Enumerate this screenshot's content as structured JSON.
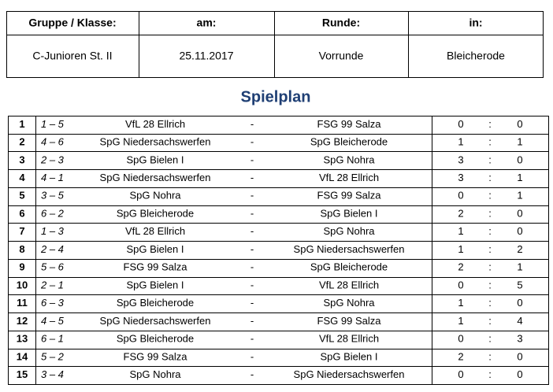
{
  "header": {
    "columns": [
      "Gruppe / Klasse:",
      "am:",
      "Runde:",
      "in:"
    ],
    "values": [
      "C-Junioren St. II",
      "25.11.2017",
      "Vorrunde",
      "Bleicherode"
    ]
  },
  "schedule": {
    "title": "Spielplan",
    "match_separator": "-",
    "score_separator": ":",
    "rows": [
      {
        "nr": 1,
        "pairing": "1 – 5",
        "home": "VfL 28 Ellrich",
        "away": "FSG 99 Salza",
        "home_goals": 0,
        "away_goals": 0
      },
      {
        "nr": 2,
        "pairing": "4 – 6",
        "home": "SpG Niedersachswerfen",
        "away": "SpG Bleicherode",
        "home_goals": 1,
        "away_goals": 1
      },
      {
        "nr": 3,
        "pairing": "2 – 3",
        "home": "SpG Bielen I",
        "away": "SpG Nohra",
        "home_goals": 3,
        "away_goals": 0
      },
      {
        "nr": 4,
        "pairing": "4 – 1",
        "home": "SpG Niedersachswerfen",
        "away": "VfL 28 Ellrich",
        "home_goals": 3,
        "away_goals": 1
      },
      {
        "nr": 5,
        "pairing": "3 – 5",
        "home": "SpG Nohra",
        "away": "FSG 99 Salza",
        "home_goals": 0,
        "away_goals": 1
      },
      {
        "nr": 6,
        "pairing": "6 – 2",
        "home": "SpG Bleicherode",
        "away": "SpG Bielen I",
        "home_goals": 2,
        "away_goals": 0
      },
      {
        "nr": 7,
        "pairing": "1 – 3",
        "home": "VfL 28 Ellrich",
        "away": "SpG Nohra",
        "home_goals": 1,
        "away_goals": 0
      },
      {
        "nr": 8,
        "pairing": "2 – 4",
        "home": "SpG Bielen I",
        "away": "SpG Niedersachswerfen",
        "home_goals": 1,
        "away_goals": 2
      },
      {
        "nr": 9,
        "pairing": "5 – 6",
        "home": "FSG 99 Salza",
        "away": "SpG Bleicherode",
        "home_goals": 2,
        "away_goals": 1
      },
      {
        "nr": 10,
        "pairing": "2 – 1",
        "home": "SpG Bielen I",
        "away": "VfL 28 Ellrich",
        "home_goals": 0,
        "away_goals": 5
      },
      {
        "nr": 11,
        "pairing": "6 – 3",
        "home": "SpG Bleicherode",
        "away": "SpG Nohra",
        "home_goals": 1,
        "away_goals": 0
      },
      {
        "nr": 12,
        "pairing": "4 – 5",
        "home": "SpG Niedersachswerfen",
        "away": "FSG 99 Salza",
        "home_goals": 1,
        "away_goals": 4
      },
      {
        "nr": 13,
        "pairing": "6 – 1",
        "home": "SpG Bleicherode",
        "away": "VfL 28 Ellrich",
        "home_goals": 0,
        "away_goals": 3
      },
      {
        "nr": 14,
        "pairing": "5 – 2",
        "home": "FSG 99 Salza",
        "away": "SpG Bielen I",
        "home_goals": 2,
        "away_goals": 0
      },
      {
        "nr": 15,
        "pairing": "3 – 4",
        "home": "SpG Nohra",
        "away": "SpG Niedersachswerfen",
        "home_goals": 0,
        "away_goals": 0
      }
    ]
  }
}
